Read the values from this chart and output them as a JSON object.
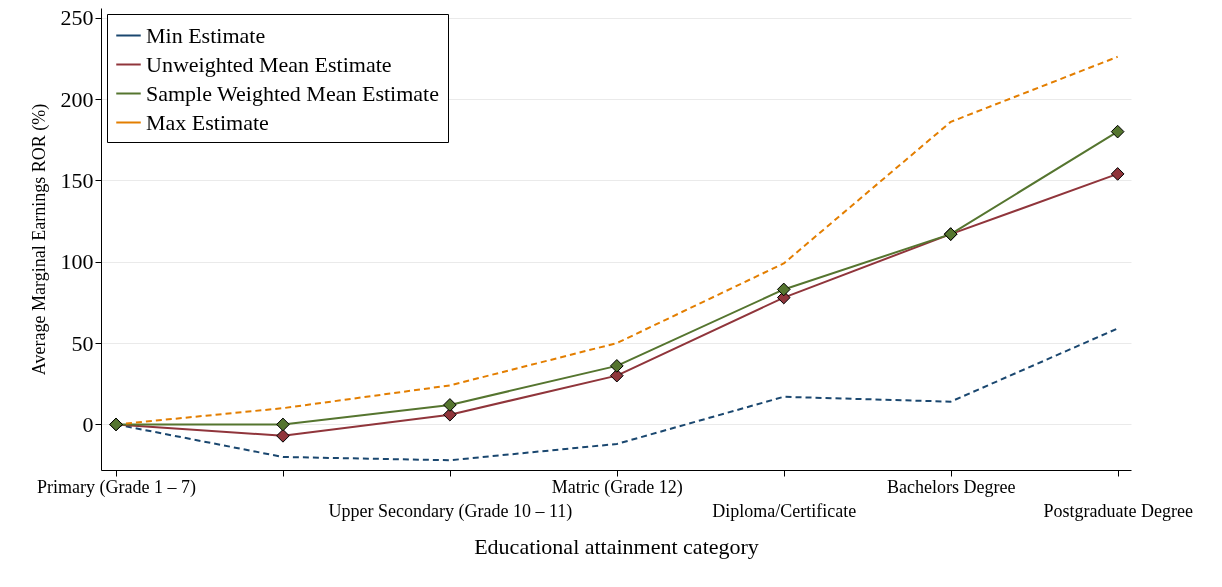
{
  "chart_data": {
    "type": "line",
    "xlabel": "Educational attainment category",
    "ylabel": "Average Marginal Earnings ROR (%)",
    "categories": [
      "Primary (Grade 1 – 7)",
      null,
      "Upper Secondary (Grade 10 – 11)",
      "Matric (Grade 12)",
      "Diploma/Certificate",
      "Bachelors Degree",
      "Postgraduate Degree"
    ],
    "series": [
      {
        "name": "Min Estimate",
        "color": "#1a476f",
        "line_style": "dashed",
        "marker": "none",
        "values": [
          0,
          -20,
          -22,
          -12,
          17,
          14,
          59
        ]
      },
      {
        "name": "Unweighted Mean Estimate",
        "color": "#90353b",
        "line_style": "solid",
        "marker": "diamond",
        "values": [
          0,
          -7,
          6,
          30,
          78,
          117,
          154
        ]
      },
      {
        "name": "Sample Weighted Mean Estimate",
        "color": "#55752f",
        "line_style": "solid",
        "marker": "diamond",
        "values": [
          0,
          0,
          12,
          36,
          83,
          117,
          180
        ]
      },
      {
        "name": "Max Estimate",
        "color": "#e37e00",
        "line_style": "dashed",
        "marker": "none",
        "values": [
          0,
          10,
          24,
          50,
          99,
          186,
          226
        ]
      }
    ],
    "ylim": [
      -28,
      256
    ],
    "yticks": [
      0,
      50,
      100,
      150,
      200,
      250
    ],
    "grid": "y",
    "legend": "top left"
  }
}
